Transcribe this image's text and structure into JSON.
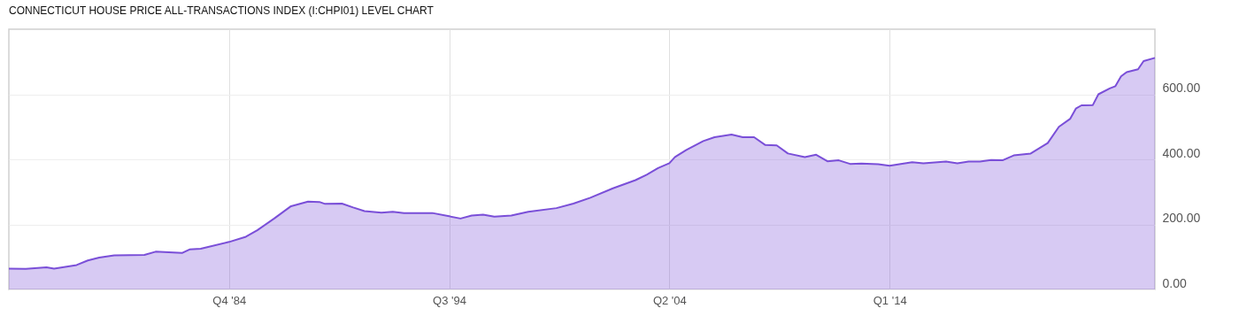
{
  "chart_data": {
    "type": "area",
    "title": "CONNECTICUT HOUSE PRICE ALL-TRANSACTIONS INDEX (I:CHPI01) LEVEL CHART",
    "x": [
      "1975-01",
      "1975-10",
      "1976-09",
      "1977-01",
      "1978-01",
      "1978-07",
      "1979-01",
      "1979-09",
      "1981-01",
      "1981-07",
      "1982-09",
      "1983-01",
      "1983-07",
      "1984-10",
      "1985-07",
      "1986-01",
      "1986-10",
      "1987-07",
      "1988-04",
      "1988-10",
      "1989-01",
      "1989-10",
      "1990-04",
      "1990-10",
      "1991-07",
      "1992-01",
      "1992-07",
      "1993-10",
      "1994-07",
      "1995-01",
      "1995-07",
      "1996-01",
      "1996-07",
      "1997-04",
      "1998-01",
      "1999-04",
      "2000-01",
      "2000-10",
      "2001-10",
      "2002-10",
      "2003-04",
      "2003-10",
      "2004-04",
      "2004-07",
      "2005-01",
      "2005-10",
      "2006-04",
      "2007-01",
      "2007-07",
      "2008-01",
      "2008-07",
      "2009-01",
      "2009-07",
      "2010-04",
      "2010-10",
      "2011-04",
      "2011-10",
      "2012-04",
      "2012-10",
      "2013-07",
      "2014-01",
      "2014-07",
      "2015-01",
      "2015-07",
      "2016-07",
      "2017-01",
      "2017-07",
      "2018-01",
      "2018-07",
      "2019-01",
      "2019-07",
      "2020-04",
      "2021-01",
      "2021-07",
      "2022-01",
      "2022-04",
      "2022-07",
      "2023-01",
      "2023-04",
      "2023-10",
      "2024-01",
      "2024-04",
      "2024-07",
      "2025-01",
      "2025-04",
      "2025-10"
    ],
    "series": [
      {
        "color": "#7a4fd8",
        "values": [
          64,
          63,
          68,
          64,
          75,
          89,
          98,
          105,
          106,
          116,
          112,
          123,
          125,
          146,
          162,
          182,
          218,
          256,
          270,
          269,
          263,
          264,
          252,
          241,
          236,
          239,
          235,
          235,
          225,
          218,
          227,
          230,
          224,
          227,
          239,
          250,
          264,
          282,
          311,
          336,
          353,
          373,
          388,
          407,
          429,
          456,
          468,
          476,
          468,
          468,
          444,
          443,
          418,
          407,
          414,
          394,
          397,
          386,
          387,
          385,
          380,
          386,
          391,
          388,
          393,
          388,
          393,
          393,
          398,
          397,
          412,
          418,
          450,
          500,
          525,
          556,
          566,
          567,
          600,
          618,
          625,
          655,
          668,
          677,
          702,
          712
        ]
      }
    ],
    "xlim": [
      "1975-01",
      "2025-10"
    ],
    "xticks": [
      {
        "value": "1984-10",
        "label": "Q4 '84"
      },
      {
        "value": "1994-07",
        "label": "Q3 '94"
      },
      {
        "value": "2004-04",
        "label": "Q2 '04"
      },
      {
        "value": "2014-01",
        "label": "Q1 '14"
      }
    ],
    "ylim": [
      0,
      800
    ],
    "yticks": [
      {
        "value": 0,
        "label": "0.00"
      },
      {
        "value": 200,
        "label": "200.00"
      },
      {
        "value": 400,
        "label": "400.00"
      },
      {
        "value": 600,
        "label": "600.00"
      }
    ],
    "grid": true
  }
}
